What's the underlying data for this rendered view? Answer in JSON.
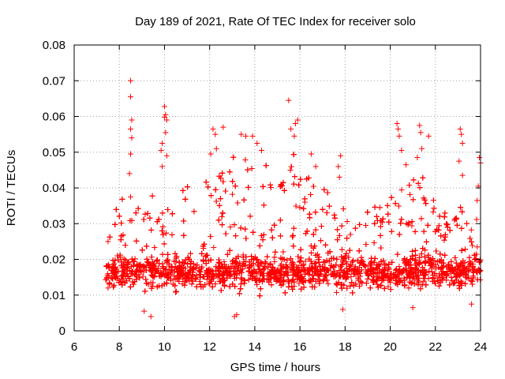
{
  "chart_data": {
    "type": "scatter",
    "title": "Day 189 of 2021, Rate Of TEC Index for receiver solo",
    "xlabel": "GPS time / hours",
    "ylabel": "ROTI / TECUs",
    "xlim": [
      6,
      24
    ],
    "ylim": [
      0,
      0.08
    ],
    "xticks": [
      "6",
      "8",
      "10",
      "12",
      "14",
      "16",
      "18",
      "20",
      "22",
      "24"
    ],
    "yticks": [
      "0",
      "0.01",
      "0.02",
      "0.03",
      "0.04",
      "0.05",
      "0.06",
      "0.07",
      "0.08"
    ],
    "xtick_values": [
      6,
      8,
      10,
      12,
      14,
      16,
      18,
      20,
      22,
      24
    ],
    "ytick_values": [
      0,
      0.01,
      0.02,
      0.03,
      0.04,
      0.05,
      0.06,
      0.07,
      0.08
    ],
    "grid": true,
    "marker": "+",
    "series_color": "#ff0000",
    "note": "Dense ROTI point cloud from ~7.4 h to 24 h, typically 0.005-0.035 TECU/s with spikes up to 0.07",
    "series": [
      {
        "name": "ROTI",
        "points": [
          [
            8.5,
            0.07
          ],
          [
            8.5,
            0.0655
          ],
          [
            8.55,
            0.059
          ],
          [
            8.5,
            0.0565
          ],
          [
            8.55,
            0.054
          ],
          [
            8.5,
            0.0495
          ],
          [
            8.45,
            0.044
          ],
          [
            8.5,
            0.0375
          ],
          [
            10.0,
            0.0628
          ],
          [
            10.05,
            0.0605
          ],
          [
            10.0,
            0.0598
          ],
          [
            10.1,
            0.059
          ],
          [
            9.9,
            0.0525
          ],
          [
            9.85,
            0.0505
          ],
          [
            9.9,
            0.046
          ],
          [
            10.05,
            0.0555
          ],
          [
            10.1,
            0.049
          ],
          [
            12.15,
            0.0565
          ],
          [
            12.25,
            0.055
          ],
          [
            12.6,
            0.057
          ],
          [
            12.3,
            0.051
          ],
          [
            12.05,
            0.0495
          ],
          [
            13.4,
            0.055
          ],
          [
            13.6,
            0.0545
          ],
          [
            13.9,
            0.0545
          ],
          [
            14.1,
            0.0525
          ],
          [
            14.3,
            0.0505
          ],
          [
            15.5,
            0.0645
          ],
          [
            15.9,
            0.059
          ],
          [
            15.8,
            0.058
          ],
          [
            15.6,
            0.0565
          ],
          [
            15.75,
            0.0545
          ],
          [
            16.5,
            0.0495
          ],
          [
            16.7,
            0.046
          ],
          [
            17.8,
            0.049
          ],
          [
            17.7,
            0.046
          ],
          [
            17.75,
            0.043
          ],
          [
            20.3,
            0.058
          ],
          [
            20.35,
            0.0565
          ],
          [
            20.4,
            0.0545
          ],
          [
            20.5,
            0.0505
          ],
          [
            20.7,
            0.0465
          ],
          [
            21.3,
            0.0575
          ],
          [
            21.35,
            0.0555
          ],
          [
            21.7,
            0.0545
          ],
          [
            21.4,
            0.051
          ],
          [
            21.2,
            0.0485
          ],
          [
            23.1,
            0.0565
          ],
          [
            23.15,
            0.055
          ],
          [
            23.2,
            0.0525
          ],
          [
            23.05,
            0.0475
          ],
          [
            23.2,
            0.0435
          ],
          [
            23.95,
            0.0485
          ],
          [
            24.0,
            0.047
          ],
          [
            23.9,
            0.0405
          ],
          [
            23.85,
            0.0365
          ],
          [
            7.5,
            0.025
          ],
          [
            7.45,
            0.018
          ],
          [
            7.5,
            0.012
          ],
          [
            9.4,
            0.004
          ],
          [
            9.1,
            0.0055
          ],
          [
            13.1,
            0.004
          ],
          [
            13.2,
            0.0045
          ],
          [
            17.9,
            0.006
          ],
          [
            21.0,
            0.0065
          ],
          [
            23.6,
            0.0075
          ]
        ]
      }
    ]
  }
}
